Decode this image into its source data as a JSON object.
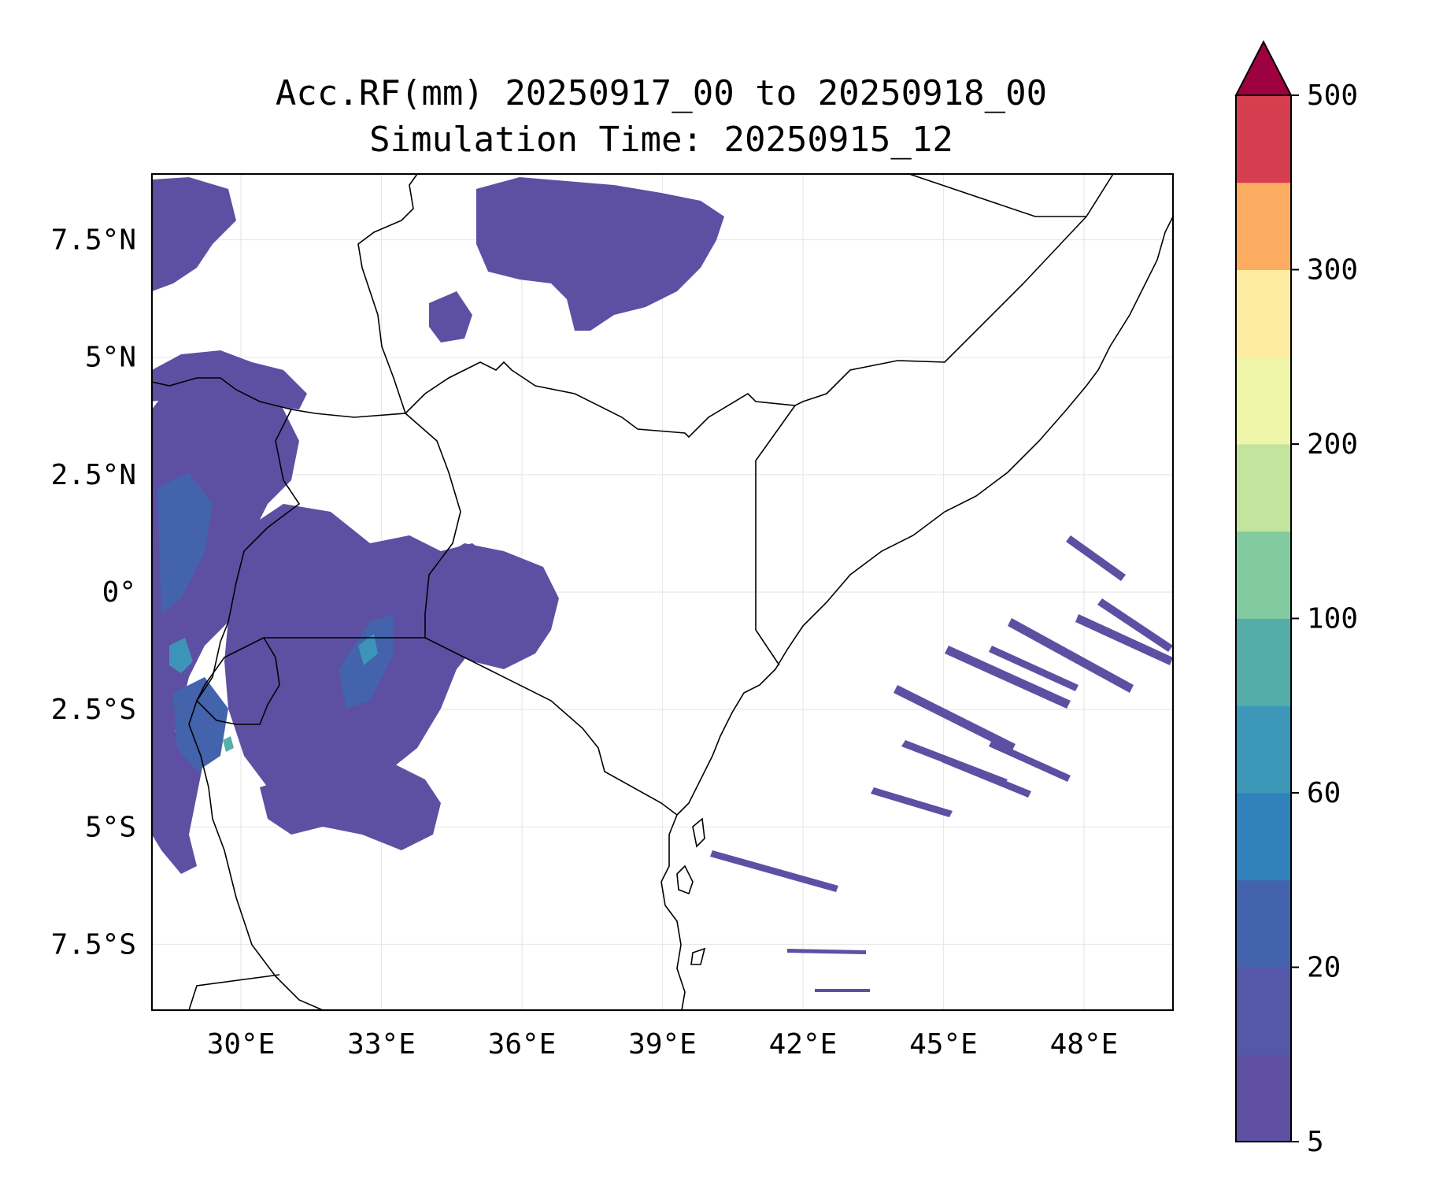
{
  "title": {
    "line1": "Acc.RF(mm) 20250917_00 to 20250918_00",
    "line2": "Simulation Time: 20250915_12"
  },
  "map": {
    "lon_range": [
      28.1,
      49.9
    ],
    "lat_range": [
      -8.9,
      8.9
    ],
    "x_ticks": [
      {
        "value": 30,
        "label": "30°E"
      },
      {
        "value": 33,
        "label": "33°E"
      },
      {
        "value": 36,
        "label": "36°E"
      },
      {
        "value": 39,
        "label": "39°E"
      },
      {
        "value": 42,
        "label": "42°E"
      },
      {
        "value": 45,
        "label": "45°E"
      },
      {
        "value": 48,
        "label": "48°E"
      }
    ],
    "y_ticks": [
      {
        "value": 7.5,
        "label": "7.5°N"
      },
      {
        "value": 5,
        "label": "5°N"
      },
      {
        "value": 2.5,
        "label": "2.5°N"
      },
      {
        "value": 0,
        "label": "0°"
      },
      {
        "value": -2.5,
        "label": "2.5°S"
      },
      {
        "value": -5,
        "label": "5°S"
      },
      {
        "value": -7.5,
        "label": "7.5°S"
      }
    ],
    "gridlines": true
  },
  "colorbar": {
    "extend": "max",
    "levels": [
      5,
      10,
      20,
      40,
      60,
      80,
      100,
      150,
      200,
      250,
      300,
      400,
      500
    ],
    "colors": [
      "#5e4fa2",
      "#5558a8",
      "#4363ad",
      "#3181bd",
      "#3d97b9",
      "#55adaa",
      "#82ca9f",
      "#c2e49c",
      "#eef5a8",
      "#feeda1",
      "#fdad61",
      "#d53e4f"
    ],
    "extend_color": "#9e0142",
    "tick_labels": [
      {
        "value": 5,
        "label": "5"
      },
      {
        "value": 20,
        "label": "20"
      },
      {
        "value": 60,
        "label": "60"
      },
      {
        "value": 100,
        "label": "100"
      },
      {
        "value": 200,
        "label": "200"
      },
      {
        "value": 300,
        "label": "300"
      },
      {
        "value": 500,
        "label": "500"
      }
    ]
  }
}
